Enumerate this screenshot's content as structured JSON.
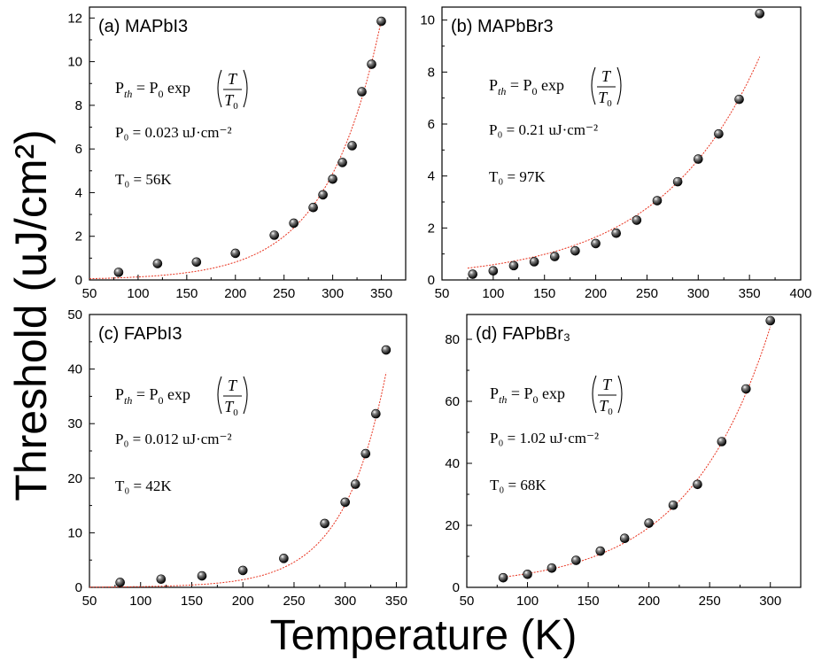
{
  "figure": {
    "ylabel": "Threshold (uJ/cm²)",
    "xlabel": "Temperature (K)"
  },
  "chart_data": [
    {
      "type": "scatter",
      "panel_label": "(a) MAPbI3",
      "xlim": [
        50,
        375
      ],
      "ylim": [
        0,
        12.5
      ],
      "xticks": [
        50,
        100,
        150,
        200,
        250,
        300,
        350
      ],
      "yticks": [
        0,
        2,
        4,
        6,
        8,
        10,
        12
      ],
      "equation": {
        "model": "P_th = P_0 exp(T/T_0)",
        "p0_text": "P₀ = 0.023 uJ·cm⁻²",
        "t0_text": "T₀ = 56K",
        "p0": 0.023,
        "t0": 56
      },
      "series": [
        {
          "x": [
            80,
            120,
            160,
            200,
            240,
            260,
            280,
            290,
            300,
            310,
            320,
            330,
            340,
            350
          ],
          "y": [
            0.35,
            0.75,
            0.82,
            1.22,
            2.05,
            2.6,
            3.32,
            3.9,
            4.62,
            5.38,
            6.15,
            8.62,
            9.88,
            11.85
          ]
        }
      ],
      "fit": {
        "x_range": [
          50,
          350
        ]
      }
    },
    {
      "type": "scatter",
      "panel_label": "(b) MAPbBr3",
      "xlim": [
        50,
        400
      ],
      "ylim": [
        0,
        10.5
      ],
      "xticks": [
        50,
        100,
        150,
        200,
        250,
        300,
        350,
        400
      ],
      "yticks": [
        0,
        2,
        4,
        6,
        8,
        10
      ],
      "equation": {
        "model": "P_th = P_0 exp(T/T_0)",
        "p0_text": "P₀ = 0.21 uJ·cm⁻²",
        "t0_text": "T₀ = 97K",
        "p0": 0.21,
        "t0": 97
      },
      "series": [
        {
          "x": [
            80,
            100,
            120,
            140,
            160,
            180,
            200,
            220,
            240,
            260,
            280,
            300,
            320,
            340,
            360
          ],
          "y": [
            0.22,
            0.35,
            0.55,
            0.7,
            0.9,
            1.12,
            1.4,
            1.8,
            2.3,
            3.05,
            3.78,
            4.65,
            5.62,
            6.95,
            10.25
          ]
        }
      ],
      "fit": {
        "x_range": [
          75,
          360
        ]
      }
    },
    {
      "type": "scatter",
      "panel_label": "(c) FAPbI3",
      "xlim": [
        50,
        360
      ],
      "ylim": [
        0,
        50
      ],
      "xticks": [
        50,
        100,
        150,
        200,
        250,
        300,
        350
      ],
      "yticks": [
        0,
        10,
        20,
        30,
        40,
        50
      ],
      "equation": {
        "model": "P_th = P_0 exp(T/T_0)",
        "p0_text": "P₀ = 0.012 uJ·cm⁻²",
        "t0_text": "T₀ = 42K",
        "p0": 0.012,
        "t0": 42
      },
      "series": [
        {
          "x": [
            80,
            120,
            160,
            200,
            240,
            280,
            300,
            310,
            320,
            330,
            340
          ],
          "y": [
            0.9,
            1.5,
            2.1,
            3.1,
            5.3,
            11.7,
            15.6,
            18.9,
            24.5,
            31.8,
            43.5
          ]
        }
      ],
      "fit": {
        "x_range": [
          50,
          340
        ]
      }
    },
    {
      "type": "scatter",
      "panel_label": "(d) FAPbBr₃",
      "xlim": [
        50,
        325
      ],
      "ylim": [
        0,
        88
      ],
      "xticks": [
        50,
        100,
        150,
        200,
        250,
        300
      ],
      "yticks": [
        0,
        20,
        40,
        60,
        80
      ],
      "equation": {
        "model": "P_th = P_0 exp(T/T_0)",
        "p0_text": "P₀ = 1.02 uJ·cm⁻²",
        "t0_text": "T₀ = 68K",
        "p0": 1.02,
        "t0": 68
      },
      "series": [
        {
          "x": [
            80,
            100,
            120,
            140,
            160,
            180,
            200,
            220,
            240,
            260,
            280,
            300
          ],
          "y": [
            3.1,
            4.2,
            6.2,
            8.7,
            11.7,
            15.8,
            20.7,
            26.5,
            33.2,
            47.0,
            64.0,
            86.0
          ]
        }
      ],
      "fit": {
        "x_range": [
          80,
          300
        ]
      }
    }
  ]
}
